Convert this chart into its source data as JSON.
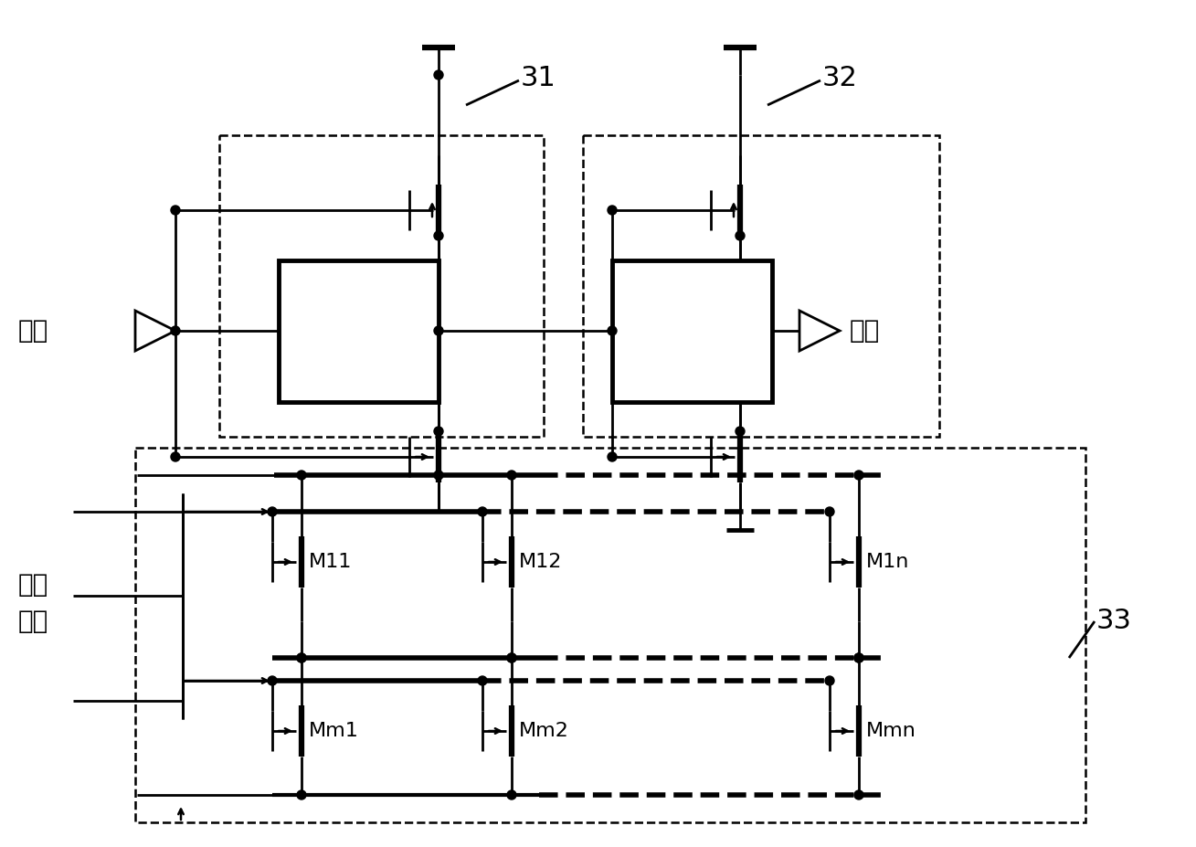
{
  "bg_color": "#ffffff",
  "label_31": "31",
  "label_32": "32",
  "label_33": "33",
  "label_input": "输入",
  "label_output": "输出",
  "label_control_1": "控制",
  "label_control_2": "电压",
  "label_M11": "M11",
  "label_M12": "M12",
  "label_M1n": "M1n",
  "label_Mm1": "Mm1",
  "label_Mm2": "Mm2",
  "label_Mmn": "Mmn",
  "figsize": [
    13.09,
    9.27
  ],
  "dpi": 100
}
